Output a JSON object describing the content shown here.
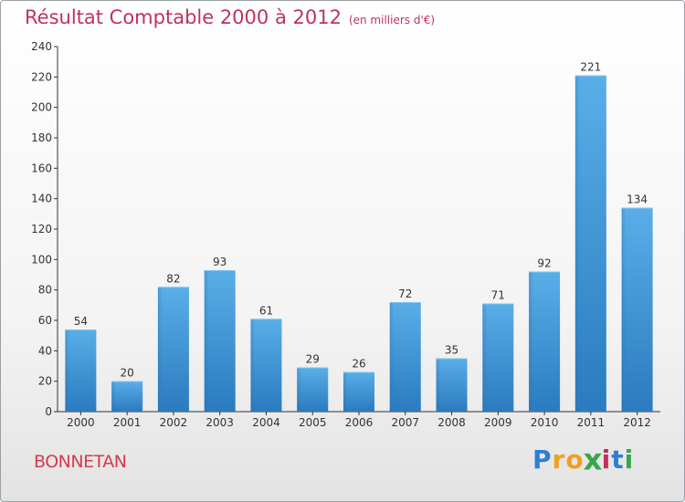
{
  "chart_data": {
    "type": "bar",
    "title": "Résultat Comptable 2000 à 2012",
    "subtitle": "(en milliers d'€)",
    "xlabel": "",
    "ylabel": "",
    "categories": [
      "2000",
      "2001",
      "2002",
      "2003",
      "2004",
      "2005",
      "2006",
      "2007",
      "2008",
      "2009",
      "2010",
      "2011",
      "2012"
    ],
    "values": [
      54,
      20,
      82,
      93,
      61,
      29,
      26,
      72,
      35,
      71,
      92,
      221,
      134
    ],
    "ylim": [
      0,
      240
    ],
    "yticks": [
      0,
      20,
      40,
      60,
      80,
      100,
      120,
      140,
      160,
      180,
      200,
      220,
      240
    ],
    "grid": false,
    "bar_color": "#3a8fd4"
  },
  "commune": "BONNETAN",
  "logo": {
    "letters": [
      "P",
      "r",
      "o",
      "x",
      "i",
      "t",
      "i"
    ],
    "colors": [
      "#2e7fd2",
      "#f0a020",
      "#f0a020",
      "#3aa64a",
      "#c0325e",
      "#2e7fd2",
      "#3aa64a"
    ]
  },
  "colors": {
    "title": "#c0325e",
    "commune": "#d63a50",
    "axis": "#333333"
  }
}
